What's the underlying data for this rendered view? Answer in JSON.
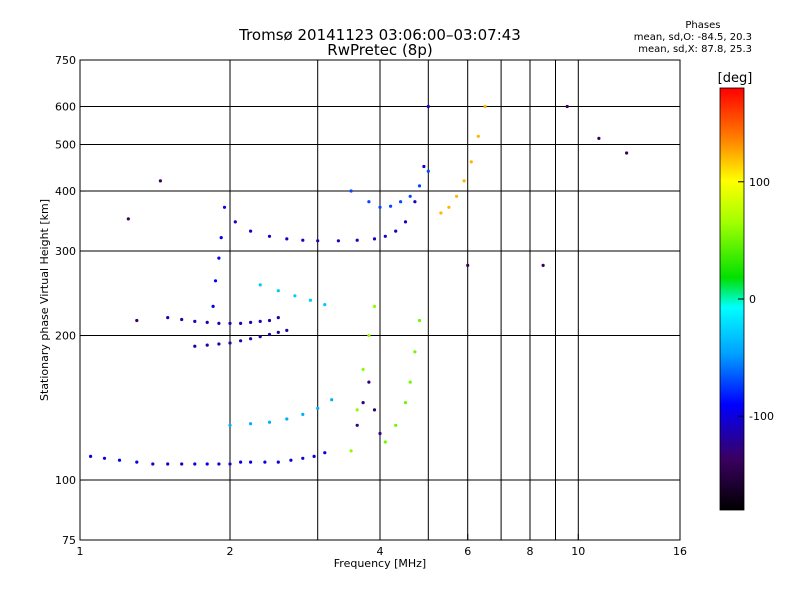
{
  "header": {
    "title_line1": "Tromsø 20141123 03:06:00–03:07:43",
    "title_line2": "RwPretec (8p)"
  },
  "phase_info": {
    "heading": "Phases",
    "line_o": "mean, sd,O: -84.5, 20.3",
    "line_x": "mean, sd,X: 87.8, 25.3"
  },
  "chart_data": {
    "type": "scatter",
    "xlabel": "Frequency [MHz]",
    "ylabel": "Stationary phase Virtual Height [km]",
    "xscale": "log",
    "yscale": "log",
    "xlim": [
      1,
      16
    ],
    "ylim": [
      75,
      750
    ],
    "x_ticks": [
      1,
      2,
      4,
      6,
      8,
      10,
      16
    ],
    "x_tick_labels": [
      "1",
      "2",
      "4",
      "6",
      "8",
      "10",
      "16"
    ],
    "x_gridlines": [
      2,
      3,
      4,
      5,
      6,
      7,
      8,
      9,
      10
    ],
    "y_ticks": [
      75,
      100,
      200,
      300,
      400,
      500,
      600,
      750
    ],
    "y_tick_labels": [
      "75",
      "100",
      "200",
      "300",
      "400",
      "500",
      "600",
      "750"
    ],
    "y_gridlines": [
      100,
      200,
      300,
      400,
      500,
      600
    ],
    "grid": true,
    "color_scale": {
      "label": "[deg]",
      "min": -180,
      "max": 180,
      "ticks": [
        100,
        0,
        -100
      ],
      "tick_labels": [
        "100",
        "0",
        "-100"
      ]
    },
    "series": [
      {
        "f": [
          1.05,
          1.12,
          1.2,
          1.3,
          1.4,
          1.5,
          1.6,
          1.7,
          1.8,
          1.9,
          2.0,
          2.1,
          2.2,
          2.35,
          2.5,
          2.65,
          2.8,
          2.95,
          3.1
        ],
        "h": [
          112,
          111,
          110,
          109,
          108,
          108,
          108,
          108,
          108,
          108,
          108,
          109,
          109,
          109,
          109,
          110,
          111,
          112,
          114
        ],
        "phase": -100
      },
      {
        "f": [
          1.5,
          1.6,
          1.7,
          1.8,
          1.9,
          2.0,
          2.1,
          2.2,
          2.3,
          2.4,
          2.5
        ],
        "h": [
          218,
          216,
          214,
          213,
          212,
          212,
          212,
          213,
          214,
          215,
          218
        ],
        "phase": -115
      },
      {
        "f": [
          1.7,
          1.8,
          1.9,
          2.0,
          2.1,
          2.2,
          2.3,
          2.4,
          2.5,
          2.6
        ],
        "h": [
          190,
          191,
          192,
          193,
          195,
          197,
          199,
          201,
          203,
          205
        ],
        "phase": -120
      },
      {
        "f": [
          1.85,
          1.87,
          1.9,
          1.92,
          1.95
        ],
        "h": [
          230,
          260,
          290,
          320,
          370
        ],
        "phase": -95
      },
      {
        "f": [
          2.05,
          2.2,
          2.4,
          2.6,
          2.8,
          3.0,
          3.3,
          3.6,
          3.9,
          4.1,
          4.3,
          4.5,
          4.7,
          4.9,
          5.0
        ],
        "h": [
          345,
          330,
          322,
          318,
          316,
          315,
          315,
          316,
          318,
          322,
          330,
          345,
          380,
          450,
          600
        ],
        "phase": -110
      },
      {
        "f": [
          3.5,
          3.8,
          4.0,
          4.2,
          4.4,
          4.6,
          4.8,
          5.0
        ],
        "h": [
          400,
          380,
          370,
          372,
          380,
          390,
          410,
          440
        ],
        "phase": -70
      },
      {
        "f": [
          2.0,
          2.2,
          2.4,
          2.6,
          2.8,
          3.0,
          3.2
        ],
        "h": [
          130,
          131,
          132,
          134,
          137,
          141,
          147
        ],
        "phase": -40
      },
      {
        "f": [
          2.3,
          2.5,
          2.7,
          2.9,
          3.1
        ],
        "h": [
          255,
          248,
          242,
          237,
          232
        ],
        "phase": -30
      },
      {
        "f": [
          3.5,
          3.6,
          3.7,
          3.8,
          3.9
        ],
        "h": [
          115,
          140,
          170,
          200,
          230
        ],
        "phase": 60
      },
      {
        "f": [
          4.1,
          4.3,
          4.5,
          4.6,
          4.7,
          4.8
        ],
        "h": [
          120,
          130,
          145,
          160,
          185,
          215
        ],
        "phase": 50
      },
      {
        "f": [
          3.6,
          3.7,
          3.8,
          3.9,
          4.0
        ],
        "h": [
          130,
          145,
          160,
          140,
          125
        ],
        "phase": -130
      },
      {
        "f": [
          5.3,
          5.5,
          5.7,
          5.9,
          6.1,
          6.3,
          6.5
        ],
        "h": [
          360,
          370,
          390,
          420,
          460,
          520,
          600
        ],
        "phase": 120
      },
      {
        "f": [
          1.25,
          1.3,
          1.45,
          6.0,
          8.5,
          9.5,
          11,
          12.5
        ],
        "h": [
          350,
          215,
          420,
          280,
          280,
          600,
          515,
          480
        ],
        "phase": -140
      }
    ]
  }
}
